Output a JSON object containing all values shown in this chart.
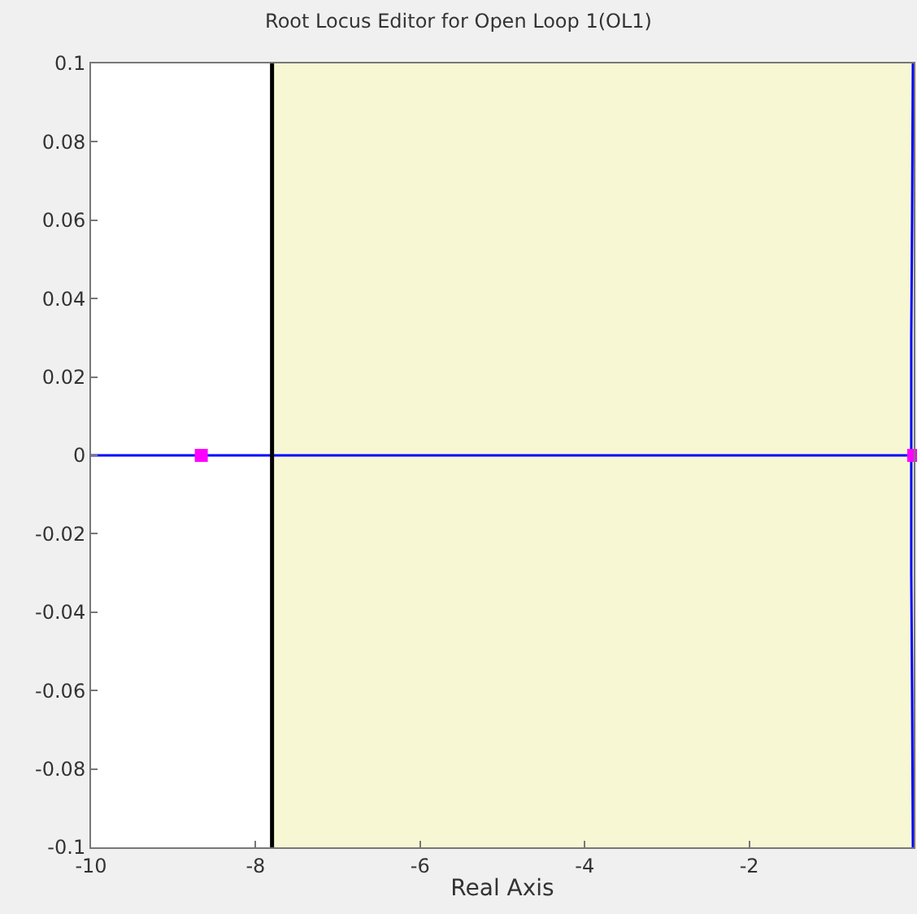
{
  "chart_data": {
    "type": "line",
    "title": "Root Locus Editor for Open Loop 1(OL1)",
    "xlabel": "Real Axis",
    "xlim": [
      -10,
      0
    ],
    "xticks": [
      -10,
      -8,
      -6,
      -4,
      -2
    ],
    "ylim": [
      -0.1,
      0.1
    ],
    "yticks": [
      -0.1,
      -0.08,
      -0.06,
      -0.04,
      -0.02,
      0,
      0.02,
      0.04,
      0.06,
      0.08,
      0.1
    ],
    "grid": false,
    "bands": [
      {
        "axis": "x",
        "from": -7.8,
        "to": 0,
        "color": "#f7f7d4"
      }
    ],
    "ref_lines": [
      {
        "axis": "x",
        "value": -7.8,
        "color": "#000000",
        "line_style": "solid"
      }
    ],
    "series": [
      {
        "color": "#0000ff",
        "x": [
          -10,
          0
        ],
        "values": [
          0,
          0
        ],
        "marker": "none",
        "line_style": "solid"
      },
      {
        "color": "#0000ff",
        "x": [
          -0.01,
          -0.02,
          -0.03,
          -0.03,
          -0.02,
          -0.01
        ],
        "values": [
          0.1,
          0.06,
          0.03,
          -0.03,
          -0.06,
          -0.1
        ],
        "marker": "none",
        "line_style": "solid"
      },
      {
        "type": "scatter",
        "color": "#ff00ff",
        "x": [
          -8.66,
          0
        ],
        "values": [
          0,
          0
        ],
        "marker": "square"
      }
    ]
  }
}
